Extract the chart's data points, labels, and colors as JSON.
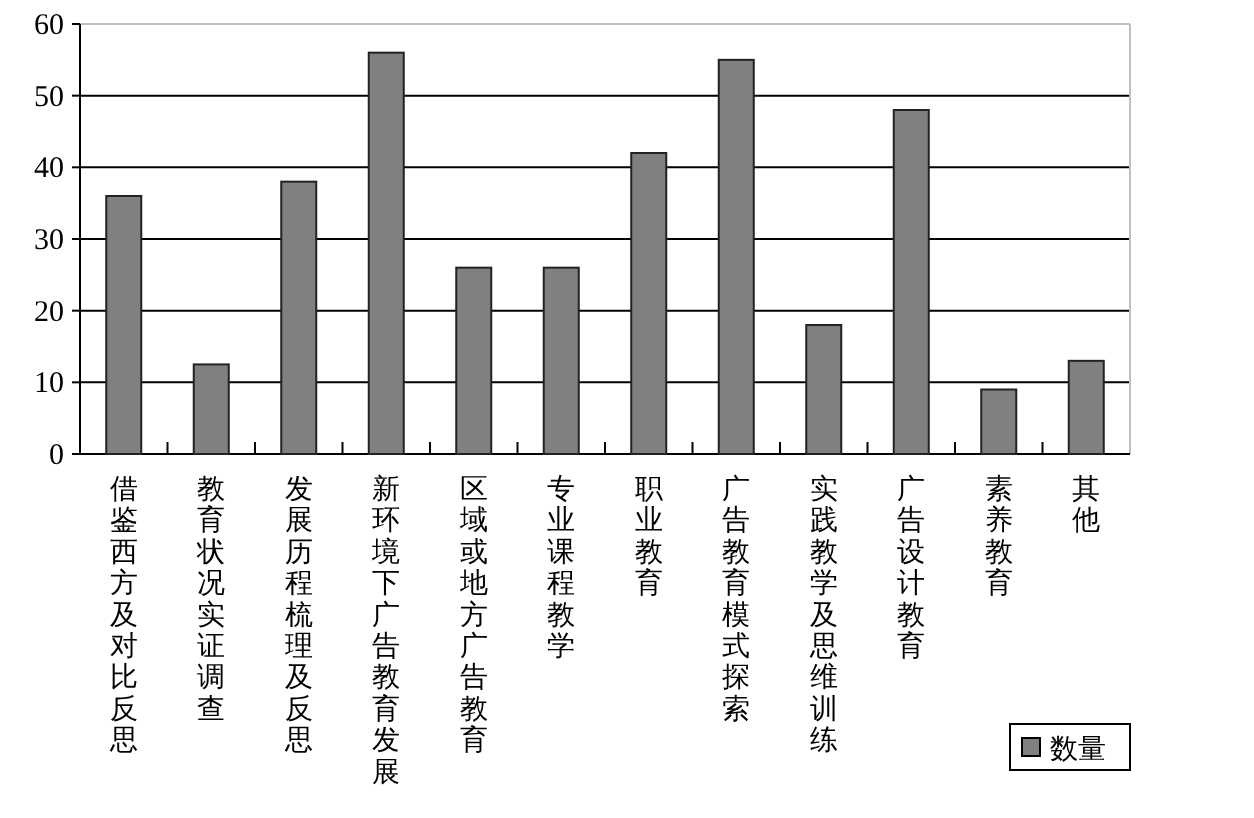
{
  "chart_data": {
    "type": "bar",
    "categories": [
      "借鉴西方及对比反思",
      "教育状况实证调查",
      "发展历程梳理及反思",
      "新环境下广告教育发展",
      "区域或地方广告教育",
      "专业课程教学",
      "职业教育",
      "广告教育模式探索",
      "实践教学及思维训练",
      "广告设计教育",
      "素养教育",
      "其他"
    ],
    "series": [
      {
        "name": "数量",
        "color": "#808080",
        "values": [
          36,
          12.5,
          38,
          56,
          26,
          26,
          42,
          55,
          18,
          48,
          9,
          13
        ]
      }
    ],
    "ylim": [
      0,
      60
    ],
    "yticks": [
      0,
      10,
      20,
      30,
      40,
      50,
      60
    ],
    "grid": "y",
    "legend": "bottom right"
  }
}
